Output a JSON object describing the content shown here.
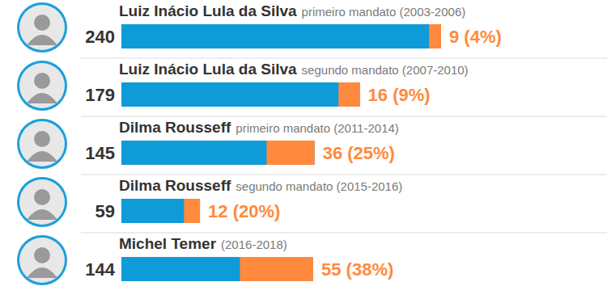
{
  "chart_data": {
    "type": "bar",
    "orientation": "horizontal",
    "categories": [
      "Luiz Inácio Lula da Silva",
      "Luiz Inácio Lula da Silva",
      "Dilma Rousseff",
      "Dilma Rousseff",
      "Michel Temer"
    ],
    "subtitles": [
      "primeiro mandato (2003-2006)",
      "segundo mandato (2007-2010)",
      "primeiro mandato (2011-2014)",
      "segundo mandato (2015-2016)",
      "(2016-2018)"
    ],
    "series": [
      {
        "color": "#0e9bd8",
        "values": [
          240,
          179,
          145,
          59,
          144
        ]
      },
      {
        "color": "#ff8a3d",
        "values": [
          9,
          16,
          36,
          12,
          55
        ],
        "value_labels": [
          "9 (4%)",
          "16 (9%)",
          "36 (25%)",
          "12 (20%)",
          "55 (38%)"
        ]
      }
    ],
    "xlim": [
      0,
      240
    ],
    "xticks": [],
    "tick_labels": false,
    "grid": false,
    "data_labels": true
  }
}
